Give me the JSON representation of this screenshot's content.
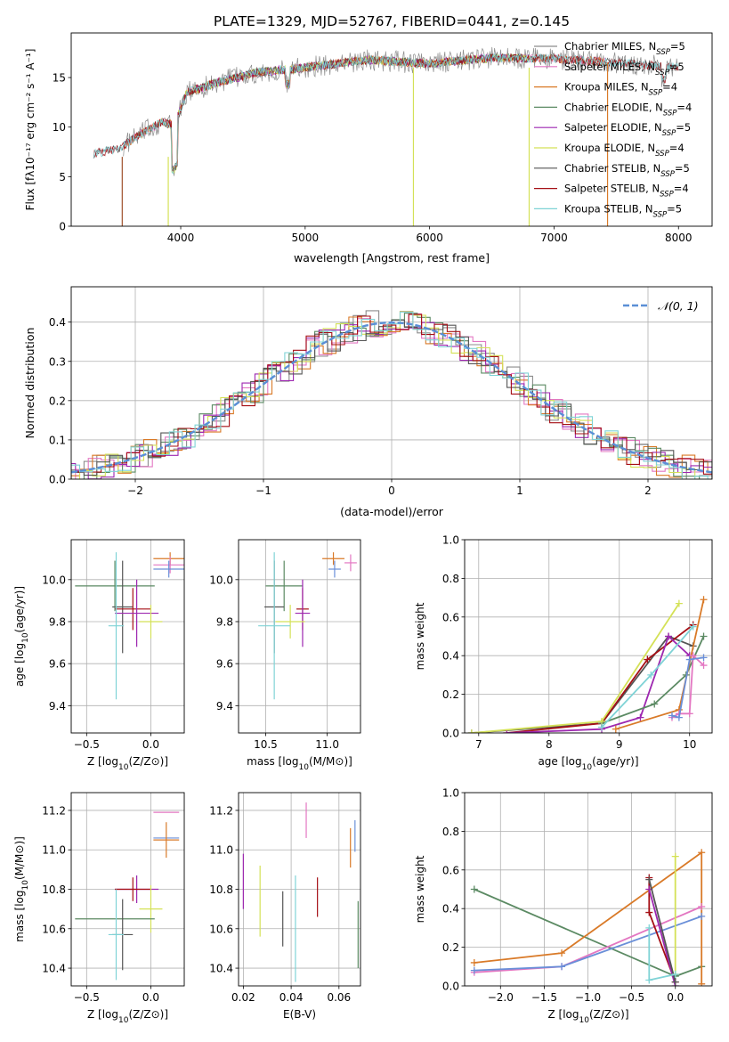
{
  "figure_title": "PLATE=1329, MJD=52767, FIBERID=0441, z=0.145",
  "colors": {
    "chabrier_miles": "#8c8c8c",
    "salpeter_miles": "#e377c2",
    "kroupa_miles": "#d97a28",
    "chabrier_elodie": "#5b8a63",
    "salpeter_elodie": "#9d27b0",
    "kroupa_elodie": "#d4e157",
    "chabrier_stelib": "#555555",
    "salpeter_stelib": "#a50f15",
    "kroupa_stelib": "#7fd3d6",
    "normal": "#5a8fd6",
    "extra_blue": "#6a8fd8",
    "grid": "#b0b0b0"
  },
  "legend_entries": [
    {
      "label": "Chabrier MILES, N",
      "sub": "SSP",
      "tail": "=5",
      "color": "#8c8c8c"
    },
    {
      "label": "Salpeter MILES, N",
      "sub": "SSP",
      "tail": "=5",
      "color": "#e377c2"
    },
    {
      "label": "Kroupa MILES, N",
      "sub": "SSP",
      "tail": "=4",
      "color": "#d97a28"
    },
    {
      "label": "Chabrier ELODIE, N",
      "sub": "SSP",
      "tail": "=4",
      "color": "#5b8a63"
    },
    {
      "label": "Salpeter ELODIE, N",
      "sub": "SSP",
      "tail": "=5",
      "color": "#9d27b0"
    },
    {
      "label": "Kroupa ELODIE, N",
      "sub": "SSP",
      "tail": "=4",
      "color": "#d4e157"
    },
    {
      "label": "Chabrier STELIB, N",
      "sub": "SSP",
      "tail": "=5",
      "color": "#555555"
    },
    {
      "label": "Salpeter STELIB, N",
      "sub": "SSP",
      "tail": "=4",
      "color": "#a50f15"
    },
    {
      "label": "Kroupa STELIB, N",
      "sub": "SSP",
      "tail": "=5",
      "color": "#7fd3d6"
    }
  ],
  "chart_data": [
    {
      "type": "line",
      "xlabel": "wavelength [Angstrom, rest frame]",
      "ylabel": "Flux [fλ10⁻¹⁷ erg cm⁻² s⁻¹ A⁻¹]",
      "xlim": [
        3120,
        8270
      ],
      "ylim": [
        0,
        19.5
      ],
      "xticks": [
        4000,
        5000,
        6000,
        7000,
        8000
      ],
      "yticks": [
        0,
        5,
        10,
        15
      ],
      "spectrum_knots": {
        "x": [
          3300,
          3500,
          3700,
          3850,
          3950,
          4050,
          4300,
          4600,
          5000,
          5500,
          6000,
          6500,
          7000,
          7500,
          8000
        ],
        "y": [
          7.3,
          7.8,
          9.5,
          10.5,
          10.2,
          13.5,
          14.5,
          15.5,
          16.0,
          16.8,
          16.4,
          17.0,
          16.9,
          16.5,
          16.0
        ]
      },
      "edge_drops": [
        {
          "x": 3530,
          "color": "#a0522d"
        },
        {
          "x": 3900,
          "color": "#d4e157"
        },
        {
          "x": 6800,
          "color": "#d4e157"
        },
        {
          "x": 7430,
          "color": "#d97a28"
        },
        {
          "x": 5870,
          "color": "#d4e157"
        }
      ]
    },
    {
      "type": "line",
      "xlabel": "(data-model)/error",
      "ylabel": "Normed distribution",
      "xlim": [
        -2.5,
        2.5
      ],
      "ylim": [
        0,
        0.49
      ],
      "xticks": [
        -2,
        -1,
        0,
        1,
        2
      ],
      "yticks": [
        0.0,
        0.1,
        0.2,
        0.3,
        0.4
      ],
      "legend": "𝒩(0, 1)",
      "legend_placement": "top-right",
      "bin_width": 0.1
    },
    {
      "type": "scatter",
      "xlabel": "Z [log10(Z/Z⊙)]",
      "ylabel": "age  [log10(age/yr)]",
      "xlim": [
        -0.62,
        0.26
      ],
      "ylim": [
        9.27,
        10.19
      ],
      "xticks": [
        -0.5,
        0.0
      ],
      "yticks": [
        9.4,
        9.6,
        9.8,
        10.0
      ],
      "points": [
        {
          "x": 0.15,
          "y": 10.1,
          "xe": 0.13,
          "ye": 0.03,
          "c": "#d97a28"
        },
        {
          "x": 0.15,
          "y": 10.07,
          "xe": 0.13,
          "ye": 0.04,
          "c": "#e377c2"
        },
        {
          "x": 0.14,
          "y": 10.05,
          "xe": 0.12,
          "ye": 0.04,
          "c": "#6a8fd8"
        },
        {
          "x": -0.28,
          "y": 9.97,
          "xe": 0.31,
          "ye": 0.12,
          "c": "#5b8a63"
        },
        {
          "x": -0.22,
          "y": 9.87,
          "xe": 0.08,
          "ye": 0.22,
          "c": "#555555"
        },
        {
          "x": -0.14,
          "y": 9.86,
          "xe": 0.14,
          "ye": 0.1,
          "c": "#a50f15"
        },
        {
          "x": -0.11,
          "y": 9.84,
          "xe": 0.17,
          "ye": 0.16,
          "c": "#9d27b0"
        },
        {
          "x": 0.0,
          "y": 9.8,
          "xe": 0.09,
          "ye": 0.08,
          "c": "#d4e157"
        },
        {
          "x": -0.27,
          "y": 9.78,
          "xe": 0.06,
          "ye": 0.35,
          "c": "#7fd3d6"
        }
      ]
    },
    {
      "type": "scatter",
      "xlabel": "mass [log10(M/M⊙)]",
      "ylabel": "",
      "xlim": [
        10.28,
        11.27
      ],
      "ylim": [
        9.27,
        10.19
      ],
      "xticks": [
        10.5,
        11.0
      ],
      "yticks": [
        9.4,
        9.6,
        9.8,
        10.0
      ],
      "points": [
        {
          "x": 11.05,
          "y": 10.1,
          "xe": 0.09,
          "ye": 0.03,
          "c": "#d97a28"
        },
        {
          "x": 11.19,
          "y": 10.08,
          "xe": 0.05,
          "ye": 0.04,
          "c": "#e377c2"
        },
        {
          "x": 11.06,
          "y": 10.05,
          "xe": 0.05,
          "ye": 0.04,
          "c": "#6a8fd8"
        },
        {
          "x": 10.65,
          "y": 9.97,
          "xe": 0.15,
          "ye": 0.12,
          "c": "#5b8a63"
        },
        {
          "x": 10.57,
          "y": 9.87,
          "xe": 0.08,
          "ye": 0.22,
          "c": "#555555"
        },
        {
          "x": 10.8,
          "y": 9.86,
          "xe": 0.05,
          "ye": 0.1,
          "c": "#a50f15"
        },
        {
          "x": 10.8,
          "y": 9.84,
          "xe": 0.06,
          "ye": 0.16,
          "c": "#9d27b0"
        },
        {
          "x": 10.7,
          "y": 9.8,
          "xe": 0.12,
          "ye": 0.08,
          "c": "#d4e157"
        },
        {
          "x": 10.57,
          "y": 9.78,
          "xe": 0.13,
          "ye": 0.35,
          "c": "#7fd3d6"
        }
      ]
    },
    {
      "type": "line",
      "xlabel": "age  [log10(age/yr)]",
      "ylabel": "mass weight",
      "xlim": [
        6.8,
        10.32
      ],
      "ylim": [
        0.0,
        1.0
      ],
      "xticks": [
        7,
        8,
        9,
        10
      ],
      "yticks": [
        0.0,
        0.2,
        0.4,
        0.6,
        0.8,
        1.0
      ],
      "series": [
        {
          "c": "#555555",
          "x": [
            6.9,
            8.75,
            9.7,
            10.05
          ],
          "y": [
            0.0,
            0.05,
            0.5,
            0.45
          ]
        },
        {
          "c": "#a50f15",
          "x": [
            7.4,
            8.75,
            9.4,
            10.05
          ],
          "y": [
            0.0,
            0.05,
            0.38,
            0.56
          ]
        },
        {
          "c": "#9d27b0",
          "x": [
            7.4,
            8.75,
            9.3,
            9.7,
            10.0
          ],
          "y": [
            0.0,
            0.02,
            0.08,
            0.5,
            0.4
          ]
        },
        {
          "c": "#5b8a63",
          "x": [
            8.75,
            9.5,
            9.95,
            10.2
          ],
          "y": [
            0.05,
            0.15,
            0.3,
            0.5
          ]
        },
        {
          "c": "#d4e157",
          "x": [
            6.9,
            8.75,
            9.85
          ],
          "y": [
            0.0,
            0.06,
            0.67
          ]
        },
        {
          "c": "#7fd3d6",
          "x": [
            8.75,
            9.45,
            10.05
          ],
          "y": [
            0.03,
            0.3,
            0.55
          ]
        },
        {
          "c": "#d97a28",
          "x": [
            8.95,
            9.85,
            10.2
          ],
          "y": [
            0.02,
            0.12,
            0.69
          ]
        },
        {
          "c": "#e377c2",
          "x": [
            9.75,
            9.85,
            10.0,
            10.05,
            10.2
          ],
          "y": [
            0.08,
            0.1,
            0.1,
            0.4,
            0.35
          ]
        },
        {
          "c": "#6a8fd8",
          "x": [
            9.75,
            9.85,
            10.0,
            10.2
          ],
          "y": [
            0.09,
            0.08,
            0.38,
            0.39
          ]
        }
      ]
    },
    {
      "type": "scatter",
      "xlabel": "Z [log10(Z/Z⊙)]",
      "ylabel": "mass [log10(M/M⊙)]",
      "xlim": [
        -0.62,
        0.26
      ],
      "ylim": [
        10.31,
        11.29
      ],
      "xticks": [
        -0.5,
        0.0
      ],
      "yticks": [
        10.4,
        10.6,
        10.8,
        11.0,
        11.2
      ],
      "points": [
        {
          "x": 0.12,
          "y": 11.19,
          "xe": 0.1,
          "ye": 0.0,
          "c": "#e377c2"
        },
        {
          "x": 0.12,
          "y": 11.06,
          "xe": 0.1,
          "ye": 0.0,
          "c": "#6a8fd8"
        },
        {
          "x": 0.12,
          "y": 11.05,
          "xe": 0.1,
          "ye": 0.09,
          "c": "#d97a28"
        },
        {
          "x": -0.11,
          "y": 10.8,
          "xe": 0.17,
          "ye": 0.07,
          "c": "#9d27b0"
        },
        {
          "x": -0.14,
          "y": 10.8,
          "xe": 0.14,
          "ye": 0.06,
          "c": "#a50f15"
        },
        {
          "x": 0.0,
          "y": 10.7,
          "xe": 0.09,
          "ye": 0.12,
          "c": "#d4e157"
        },
        {
          "x": -0.28,
          "y": 10.65,
          "xe": 0.31,
          "ye": 0.0,
          "c": "#5b8a63"
        },
        {
          "x": -0.22,
          "y": 10.57,
          "xe": 0.08,
          "ye": 0.18,
          "c": "#555555"
        },
        {
          "x": -0.27,
          "y": 10.57,
          "xe": 0.06,
          "ye": 0.23,
          "c": "#7fd3d6"
        }
      ]
    },
    {
      "type": "scatter",
      "xlabel": "E(B-V)",
      "ylabel": "",
      "xlim": [
        0.018,
        0.069
      ],
      "ylim": [
        10.31,
        11.29
      ],
      "xticks": [
        0.02,
        0.04,
        0.06
      ],
      "yticks": [
        10.4,
        10.6,
        10.8,
        11.0,
        11.2
      ],
      "points": [
        {
          "x": 0.0463,
          "y": 11.15,
          "ye": 0.09,
          "c": "#e377c2"
        },
        {
          "x": 0.0667,
          "y": 11.07,
          "ye": 0.08,
          "c": "#6a8fd8"
        },
        {
          "x": 0.0648,
          "y": 11.01,
          "ye": 0.1,
          "c": "#d97a28"
        },
        {
          "x": 0.02,
          "y": 10.84,
          "ye": 0.14,
          "c": "#9d27b0"
        },
        {
          "x": 0.051,
          "y": 10.76,
          "ye": 0.1,
          "c": "#a50f15"
        },
        {
          "x": 0.027,
          "y": 10.74,
          "ye": 0.18,
          "c": "#d4e157"
        },
        {
          "x": 0.068,
          "y": 10.57,
          "ye": 0.17,
          "c": "#5b8a63"
        },
        {
          "x": 0.0365,
          "y": 10.65,
          "ye": 0.14,
          "c": "#555555"
        },
        {
          "x": 0.0418,
          "y": 10.6,
          "ye": 0.27,
          "c": "#7fd3d6"
        }
      ]
    },
    {
      "type": "line",
      "xlabel": "Z [log10(Z/Z⊙)]",
      "ylabel": "mass weight",
      "xlim": [
        -2.41,
        0.42
      ],
      "ylim": [
        0.0,
        1.0
      ],
      "xticks": [
        -2.0,
        -1.5,
        -1.0,
        -0.5,
        0.0
      ],
      "yticks": [
        0.0,
        0.2,
        0.4,
        0.6,
        0.8,
        1.0
      ],
      "series": [
        {
          "c": "#5b8a63",
          "x": [
            -2.3,
            0.0,
            0.3
          ],
          "y": [
            0.5,
            0.05,
            0.1
          ]
        },
        {
          "c": "#d97a28",
          "x": [
            -2.3,
            -1.3,
            0.3,
            0.3
          ],
          "y": [
            0.12,
            0.17,
            0.69,
            0.01
          ]
        },
        {
          "c": "#e377c2",
          "x": [
            -2.3,
            -1.3,
            0.3
          ],
          "y": [
            0.07,
            0.1,
            0.41
          ]
        },
        {
          "c": "#6a8fd8",
          "x": [
            -2.3,
            -1.3,
            0.3
          ],
          "y": [
            0.08,
            0.1,
            0.36
          ]
        },
        {
          "c": "#a50f15",
          "x": [
            -0.3,
            -0.3,
            0.0
          ],
          "y": [
            0.56,
            0.38,
            0.02
          ]
        },
        {
          "c": "#9d27b0",
          "x": [
            -0.3,
            0.0
          ],
          "y": [
            0.5,
            0.0
          ]
        },
        {
          "c": "#555555",
          "x": [
            -0.3,
            0.0
          ],
          "y": [
            0.55,
            0.02
          ]
        },
        {
          "c": "#d4e157",
          "x": [
            0.0,
            0.0
          ],
          "y": [
            0.67,
            0.06
          ]
        },
        {
          "c": "#7fd3d6",
          "x": [
            -0.3,
            -0.3,
            0.0
          ],
          "y": [
            0.3,
            0.03,
            0.06
          ]
        }
      ]
    }
  ]
}
